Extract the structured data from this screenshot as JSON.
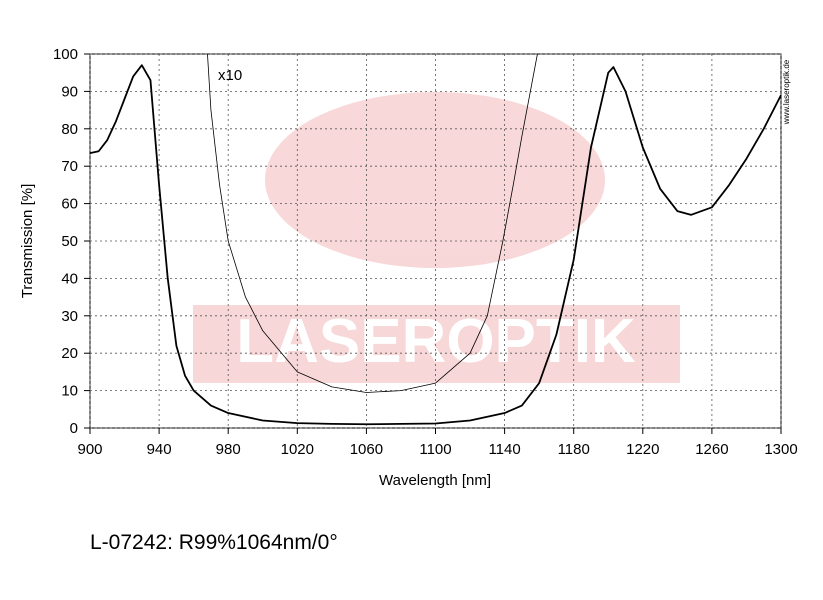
{
  "chart_data": {
    "type": "line",
    "title": "L-07242: R99%1064nm/0°",
    "xlabel": "Wavelength [nm]",
    "ylabel": "Transmission [%]",
    "watermark": "LASEROPTIK",
    "source": "www.laseroptik.de",
    "annotation": "x10",
    "xlim": [
      900,
      1300
    ],
    "ylim": [
      0,
      100
    ],
    "xticks": [
      900,
      940,
      980,
      1020,
      1060,
      1100,
      1140,
      1180,
      1220,
      1260,
      1300
    ],
    "yticks": [
      0,
      10,
      20,
      30,
      40,
      50,
      60,
      70,
      80,
      90,
      100
    ],
    "grid": true,
    "series": [
      {
        "color": "#000000",
        "width": 1.8,
        "x": [
          900,
          905,
          910,
          915,
          920,
          925,
          930,
          935,
          940,
          945,
          950,
          955,
          960,
          970,
          980,
          1000,
          1020,
          1040,
          1060,
          1080,
          1100,
          1120,
          1140,
          1150,
          1160,
          1170,
          1180,
          1190,
          1200,
          1203,
          1210,
          1220,
          1230,
          1240,
          1248,
          1260,
          1270,
          1280,
          1290,
          1300
        ],
        "values": [
          73.5,
          74,
          77,
          82,
          88,
          94,
          97,
          93,
          65,
          40,
          22,
          14,
          10,
          6,
          4,
          2,
          1.3,
          1.1,
          1,
          1.1,
          1.2,
          2,
          4,
          6,
          12,
          25,
          45,
          75,
          95,
          96.5,
          90,
          75,
          64,
          58,
          57,
          59,
          65,
          72,
          80,
          89
        ]
      },
      {
        "color": "#000000",
        "width": 0.8,
        "x": [
          968,
          970,
          975,
          980,
          990,
          1000,
          1020,
          1040,
          1060,
          1080,
          1100,
          1120,
          1130,
          1139,
          1145,
          1150,
          1159
        ],
        "values": [
          100,
          85,
          65,
          50,
          35,
          26,
          15,
          11,
          9.5,
          10,
          12,
          20,
          30,
          50,
          65,
          78,
          100
        ]
      }
    ]
  }
}
